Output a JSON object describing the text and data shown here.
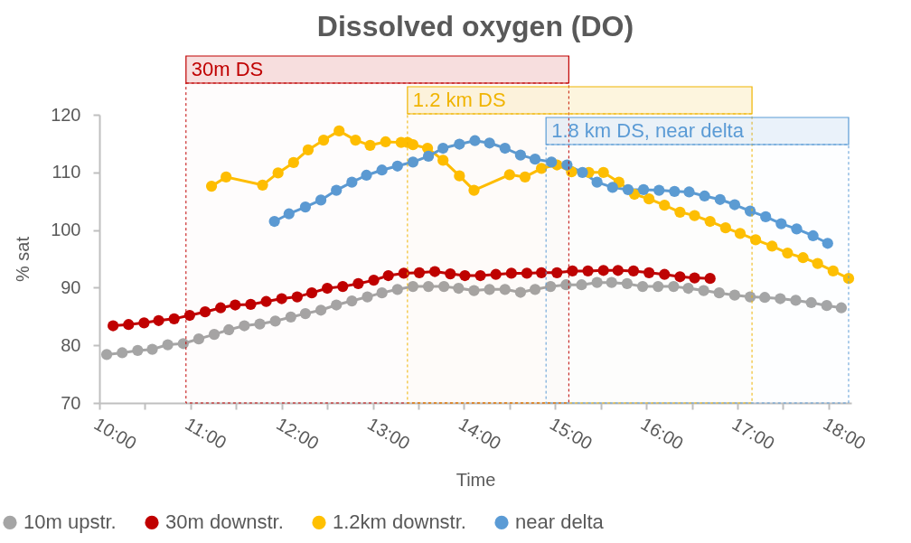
{
  "chart_data": {
    "type": "line",
    "title": "Dissolved oxygen (DO)",
    "xlabel": "Time",
    "ylabel": "% sat",
    "legend": "bottom",
    "grid": false,
    "marker": "circle",
    "line_style": "solid",
    "xlim": [
      10,
      18.25
    ],
    "ylim": [
      70,
      120
    ],
    "yticks": [
      70,
      80,
      90,
      100,
      110,
      120
    ],
    "xticks": [
      {
        "value": 10,
        "label": "10:00"
      },
      {
        "value": 10.5,
        "label": null
      },
      {
        "value": 11,
        "label": "11:00"
      },
      {
        "value": 11.5,
        "label": null
      },
      {
        "value": 12,
        "label": "12:00"
      },
      {
        "value": 12.5,
        "label": null
      },
      {
        "value": 13,
        "label": "13:00"
      },
      {
        "value": 13.5,
        "label": null
      },
      {
        "value": 14,
        "label": "14:00"
      },
      {
        "value": 14.5,
        "label": null
      },
      {
        "value": 15,
        "label": "15:00"
      },
      {
        "value": 15.5,
        "label": null
      },
      {
        "value": 16,
        "label": "16:00"
      },
      {
        "value": 16.5,
        "label": null
      },
      {
        "value": 17,
        "label": "17:00"
      },
      {
        "value": 17.5,
        "label": null
      },
      {
        "value": 18,
        "label": "18:00"
      }
    ],
    "bands": [
      {
        "axis": "x",
        "from": 10.95,
        "to": 15.15,
        "label": "30m DS",
        "color": "#c00000"
      },
      {
        "axis": "x",
        "from": 13.38,
        "to": 17.16,
        "label": "1.2 km DS",
        "color": "#f0b400"
      },
      {
        "axis": "x",
        "from": 14.9,
        "to": 18.22,
        "label": "1.8 km DS, near delta",
        "color": "#5b9bd5"
      }
    ],
    "series": [
      {
        "name": "10m upstr.",
        "color": "#a5a5a5",
        "x": [
          10.08,
          10.25,
          10.42,
          10.58,
          10.75,
          10.92,
          11.09,
          11.26,
          11.42,
          11.59,
          11.76,
          11.93,
          12.1,
          12.26,
          12.43,
          12.6,
          12.77,
          12.94,
          13.1,
          13.27,
          13.44,
          13.61,
          13.78,
          13.94,
          14.11,
          14.28,
          14.45,
          14.62,
          14.78,
          14.95,
          15.12,
          15.29,
          15.46,
          15.62,
          15.79,
          15.96,
          16.13,
          16.3,
          16.46,
          16.63,
          16.8,
          16.97,
          17.14,
          17.3,
          17.47,
          17.64,
          17.81,
          17.98,
          18.14
        ],
        "values": [
          78.4,
          78.7,
          79.1,
          79.3,
          80.1,
          80.3,
          81.1,
          81.9,
          82.7,
          83.4,
          83.7,
          84.2,
          84.9,
          85.5,
          86.1,
          87.0,
          87.7,
          88.4,
          89.1,
          89.7,
          90.2,
          90.2,
          90.2,
          89.9,
          89.5,
          89.7,
          89.7,
          89.2,
          89.7,
          90.2,
          90.5,
          90.5,
          90.9,
          90.9,
          90.7,
          90.2,
          90.2,
          90.2,
          89.9,
          89.5,
          89.1,
          88.7,
          88.4,
          88.3,
          88.1,
          87.8,
          87.4,
          86.9,
          86.5
        ]
      },
      {
        "name": "30m downstr.",
        "color": "#c00000",
        "x": [
          10.15,
          10.32,
          10.49,
          10.65,
          10.82,
          10.99,
          11.16,
          11.33,
          11.49,
          11.66,
          11.83,
          12.0,
          12.17,
          12.33,
          12.5,
          12.67,
          12.84,
          13.01,
          13.17,
          13.34,
          13.51,
          13.68,
          13.85,
          14.01,
          14.18,
          14.35,
          14.52,
          14.69,
          14.85,
          15.02,
          15.19,
          15.36,
          15.53,
          15.69,
          15.86,
          16.03,
          16.2,
          16.37,
          16.53,
          16.7
        ],
        "values": [
          83.4,
          83.6,
          83.9,
          84.3,
          84.6,
          85.2,
          85.8,
          86.5,
          87.0,
          87.1,
          87.6,
          88.1,
          88.4,
          89.1,
          89.9,
          90.2,
          90.7,
          91.3,
          92.1,
          92.5,
          92.6,
          92.8,
          92.4,
          92.1,
          92.1,
          92.3,
          92.5,
          92.5,
          92.6,
          92.6,
          92.9,
          92.9,
          93.0,
          93.0,
          92.9,
          92.6,
          92.3,
          91.9,
          91.7,
          91.6
        ]
      },
      {
        "name": "1.2km downstr.",
        "color": "#ffc000",
        "x": [
          11.23,
          11.39,
          11.79,
          11.96,
          12.13,
          12.29,
          12.46,
          12.63,
          12.81,
          12.97,
          13.14,
          13.31,
          13.38,
          13.44,
          13.6,
          13.77,
          13.95,
          14.11,
          14.5,
          14.67,
          14.85,
          15.02,
          15.18,
          15.37,
          15.53,
          15.7,
          15.87,
          16.03,
          16.2,
          16.37,
          16.53,
          16.7,
          16.87,
          17.03,
          17.2,
          17.38,
          17.55,
          17.72,
          17.88,
          18.05,
          18.22
        ],
        "values": [
          107.6,
          109.2,
          107.8,
          109.9,
          111.7,
          113.9,
          115.6,
          117.2,
          115.6,
          114.7,
          115.3,
          115.2,
          115.2,
          114.8,
          114.2,
          112.1,
          109.4,
          106.9,
          109.6,
          109.2,
          110.7,
          111.3,
          110.1,
          110.0,
          110.0,
          108.3,
          106.2,
          105.4,
          104.3,
          103.1,
          102.5,
          101.5,
          100.4,
          99.4,
          98.3,
          97.2,
          96.0,
          95.2,
          94.2,
          92.9,
          91.6
        ]
      },
      {
        "name": "near delta",
        "color": "#5b9bd5",
        "x": [
          11.92,
          12.08,
          12.26,
          12.43,
          12.6,
          12.77,
          12.93,
          13.1,
          13.27,
          13.44,
          13.61,
          13.77,
          13.95,
          14.12,
          14.28,
          14.45,
          14.62,
          14.78,
          14.96,
          15.13,
          15.3,
          15.46,
          15.63,
          15.8,
          15.97,
          16.14,
          16.31,
          16.47,
          16.64,
          16.81,
          16.97,
          17.14,
          17.31,
          17.48,
          17.65,
          17.83,
          17.99
        ],
        "values": [
          101.5,
          102.8,
          104.0,
          105.2,
          106.9,
          108.3,
          109.5,
          110.4,
          111.1,
          111.8,
          112.8,
          114.2,
          114.9,
          115.5,
          115.1,
          114.2,
          113.0,
          112.3,
          111.8,
          111.3,
          110.0,
          108.3,
          107.4,
          107.0,
          107.0,
          106.9,
          106.7,
          106.6,
          105.9,
          105.3,
          104.4,
          103.3,
          102.3,
          101.1,
          100.2,
          99.0,
          97.7
        ]
      }
    ]
  }
}
